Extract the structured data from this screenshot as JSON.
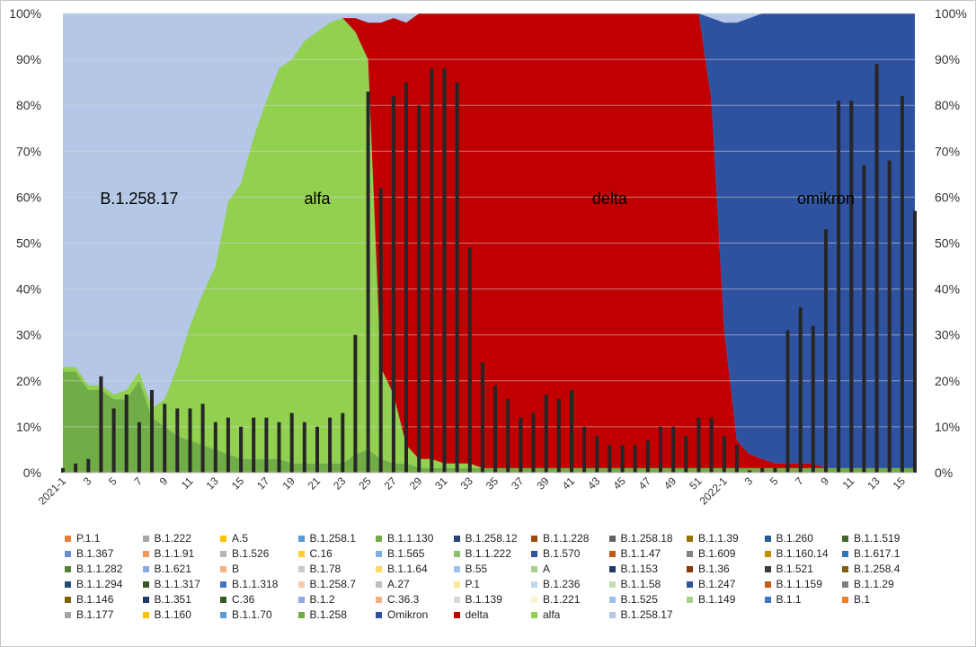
{
  "chart_data": {
    "type": "area",
    "x_tick_labels": [
      "2021-1",
      "3",
      "5",
      "7",
      "9",
      "11",
      "13",
      "15",
      "17",
      "19",
      "21",
      "23",
      "25",
      "27",
      "29",
      "31",
      "33",
      "35",
      "37",
      "39",
      "41",
      "43",
      "45",
      "47",
      "49",
      "51",
      "2022-1",
      "3",
      "5",
      "7",
      "9",
      "11",
      "13",
      "15"
    ],
    "weeks": [
      "2021-1",
      "2021-2",
      "2021-3",
      "2021-4",
      "2021-5",
      "2021-6",
      "2021-7",
      "2021-8",
      "2021-9",
      "2021-10",
      "2021-11",
      "2021-12",
      "2021-13",
      "2021-14",
      "2021-15",
      "2021-16",
      "2021-17",
      "2021-18",
      "2021-19",
      "2021-20",
      "2021-21",
      "2021-22",
      "2021-23",
      "2021-24",
      "2021-25",
      "2021-26",
      "2021-27",
      "2021-28",
      "2021-29",
      "2021-30",
      "2021-31",
      "2021-32",
      "2021-33",
      "2021-34",
      "2021-35",
      "2021-36",
      "2021-37",
      "2021-38",
      "2021-39",
      "2021-40",
      "2021-41",
      "2021-42",
      "2021-43",
      "2021-44",
      "2021-45",
      "2021-46",
      "2021-47",
      "2021-48",
      "2021-49",
      "2021-50",
      "2021-51",
      "2021-52",
      "2022-1",
      "2022-2",
      "2022-3",
      "2022-4",
      "2022-5",
      "2022-6",
      "2022-7",
      "2022-8",
      "2022-9",
      "2022-10",
      "2022-11",
      "2022-12",
      "2022-13",
      "2022-14",
      "2022-15",
      "2022-16"
    ],
    "y_left": {
      "min": 0,
      "max": 100,
      "step": 10,
      "unit": "%"
    },
    "y_right": {
      "min": 0,
      "max": 100,
      "step": 10,
      "unit": "%"
    },
    "grid": true,
    "area_stack_percent": {
      "other_minor": [
        22,
        22,
        18,
        18,
        16,
        16,
        20,
        12,
        10,
        8,
        7,
        6,
        5,
        4,
        3,
        3,
        3,
        3,
        2,
        2,
        2,
        2,
        2,
        4,
        5,
        3,
        2,
        2,
        1,
        1,
        1,
        1,
        1,
        1,
        1,
        1,
        1,
        1,
        1,
        1,
        1,
        1,
        1,
        1,
        1,
        1,
        1,
        1,
        1,
        1,
        1,
        1,
        1,
        1,
        1,
        1,
        1,
        1,
        1,
        1,
        1,
        1,
        1,
        1,
        1,
        1,
        1,
        1
      ],
      "alfa": [
        1,
        1,
        1,
        1,
        1,
        2,
        2,
        2,
        6,
        15,
        25,
        33,
        40,
        55,
        60,
        70,
        78,
        85,
        88,
        92,
        94,
        96,
        97,
        92,
        85,
        20,
        15,
        4,
        2,
        2,
        1,
        1,
        1,
        0,
        0,
        0,
        0,
        0,
        0,
        0,
        0,
        0,
        0,
        0,
        0,
        0,
        0,
        0,
        0,
        0,
        0,
        0,
        0,
        0,
        0,
        0,
        0,
        0,
        0,
        0,
        0,
        0,
        0,
        0,
        0,
        0,
        0,
        0
      ],
      "delta": [
        0,
        0,
        0,
        0,
        0,
        0,
        0,
        0,
        0,
        0,
        0,
        0,
        0,
        0,
        0,
        0,
        0,
        0,
        0,
        0,
        0,
        0,
        0,
        3,
        8,
        75,
        82,
        92,
        97,
        98,
        99,
        99,
        99,
        99,
        99,
        99,
        99,
        99,
        99,
        99,
        99,
        99,
        99,
        99,
        99,
        99,
        99,
        99,
        99,
        99,
        99,
        80,
        30,
        6,
        3,
        2,
        1,
        1,
        1,
        1,
        0,
        0,
        0,
        0,
        0,
        0,
        0,
        0
      ],
      "omikron": [
        0,
        0,
        0,
        0,
        0,
        0,
        0,
        0,
        0,
        0,
        0,
        0,
        0,
        0,
        0,
        0,
        0,
        0,
        0,
        0,
        0,
        0,
        0,
        0,
        0,
        0,
        0,
        0,
        0,
        0,
        0,
        0,
        0,
        0,
        0,
        0,
        0,
        0,
        0,
        0,
        0,
        0,
        0,
        0,
        0,
        0,
        0,
        0,
        0,
        0,
        0,
        18,
        67,
        91,
        95,
        97,
        98,
        98,
        98,
        98,
        99,
        99,
        99,
        99,
        99,
        99,
        99,
        99
      ]
    },
    "bars_right_axis_percent": [
      1,
      2,
      3,
      21,
      14,
      17,
      11,
      18,
      15,
      14,
      14,
      15,
      11,
      12,
      10,
      12,
      12,
      11,
      13,
      11,
      10,
      12,
      13,
      30,
      83,
      62,
      82,
      85,
      80,
      88,
      88,
      85,
      49,
      24,
      19,
      16,
      12,
      13,
      17,
      16,
      18,
      10,
      8,
      6,
      6,
      6,
      7,
      10,
      10,
      8,
      12,
      12,
      8,
      6,
      0.5,
      1,
      1,
      31,
      36,
      32,
      53,
      81,
      81,
      67,
      89,
      68,
      82,
      57
    ],
    "area_labels": [
      "B.1.258.17",
      "alfa",
      "delta",
      "omikron"
    ],
    "legend": [
      "P.1.1",
      "B.1.222",
      "A.5",
      "B.1.258.1",
      "B.1.1.130",
      "B.1.258.12",
      "B.1.1.228",
      "B.1.258.18",
      "B.1.1.39",
      "B.1.260",
      "B.1.1.519",
      "B.1.367",
      "B.1.1.91",
      "B.1.526",
      "C.16",
      "B.1.565",
      "B.1.1.222",
      "B.1.570",
      "B.1.1.47",
      "B.1.609",
      "B.1.160.14",
      "B.1.617.1",
      "B.1.1.282",
      "B.1.621",
      "B",
      "B.1.78",
      "B.1.1.64",
      "B.55",
      "A",
      "B.1.153",
      "B.1.36",
      "B.1.521",
      "B.1.258.4",
      "B.1.1.294",
      "B.1.1.317",
      "B.1.1.318",
      "B.1.258.7",
      "A.27",
      "P.1",
      "B.1.236",
      "B.1.1.58",
      "B.1.247",
      "B.1.1.159",
      "B.1.1.29",
      "B.1.146",
      "B.1.351",
      "C.36",
      "B.1.2",
      "C.36.3",
      "B.1.139",
      "B.1.221",
      "B.1.525",
      "B.1.149",
      "B.1.1",
      "B.1",
      "B.1.177",
      "B.1.160",
      "B.1.1.70",
      "B.1.258",
      "Omikron",
      "delta",
      "alfa",
      "B.1.258.17"
    ],
    "legend_colors": [
      "#e97d3b",
      "#a5a5a5",
      "#ffc000",
      "#5b9bd5",
      "#70ad47",
      "#264478",
      "#9e480e",
      "#636363",
      "#997300",
      "#255e91",
      "#43682b",
      "#698ed0",
      "#f1975a",
      "#b7b7b7",
      "#ffcd33",
      "#7cafdd",
      "#8cc168",
      "#2e5597",
      "#c55a11",
      "#848484",
      "#bf9000",
      "#2f75b5",
      "#548235",
      "#8faadc",
      "#f4b183",
      "#c9c9c9",
      "#ffd966",
      "#9dc3e6",
      "#a9d18e",
      "#1f3864",
      "#843c0c",
      "#3b3b3b",
      "#7f6000",
      "#1f4e79",
      "#375623",
      "#4472c4",
      "#f8cbad",
      "#bfbfbf",
      "#ffe699",
      "#bdd7ee",
      "#c5e0b4",
      "#2f5597",
      "#c55a11",
      "#7f7f7f",
      "#806000",
      "#203864",
      "#385723",
      "#8ea9db",
      "#f4b084",
      "#d9d9d9",
      "#fff2cc",
      "#9bc2e6",
      "#a9d08e",
      "#4472c4",
      "#ed7d31",
      "#a5a5a5",
      "#ffc000",
      "#5b9bd5",
      "#70ad47",
      "#2f52a0",
      "#c00000",
      "#92d050",
      "#b4c7e7"
    ],
    "colors": {
      "b1258_17": "#b4c7e7",
      "alfa": "#92d050",
      "delta": "#c00000",
      "omikron": "#2f52a0",
      "bars": "#262626",
      "other_minor": "#70ad47"
    }
  }
}
